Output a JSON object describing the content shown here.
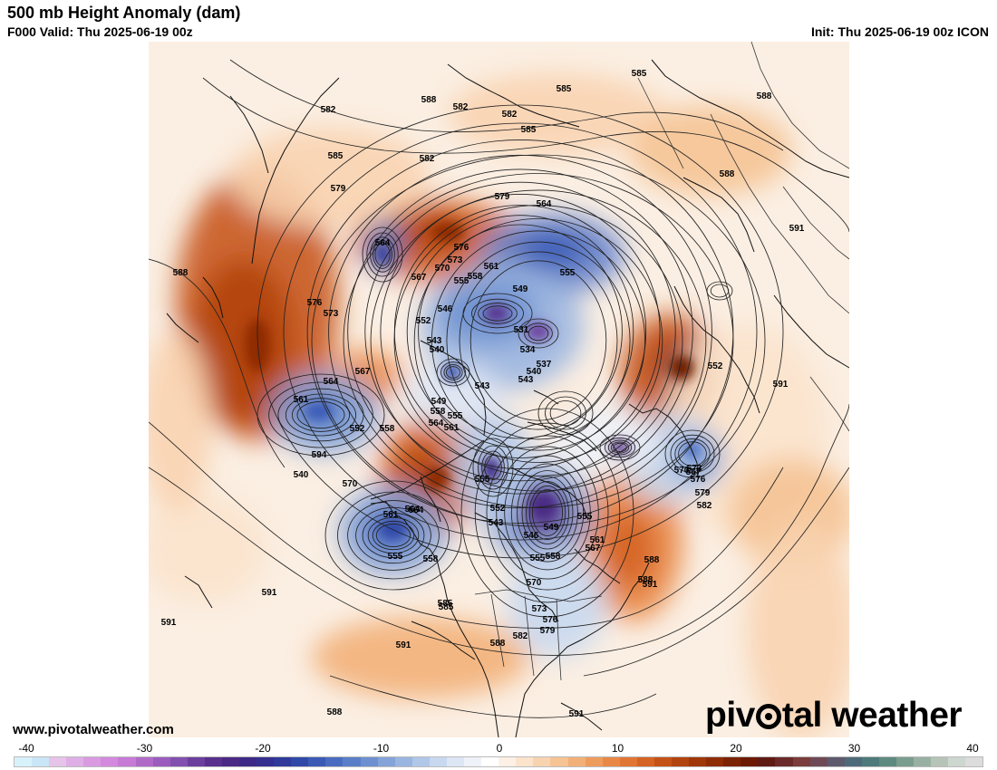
{
  "header": {
    "title": "500 mb Height Anomaly (dam)",
    "valid": "F000 Valid: Thu 2025-06-19 00z",
    "init": "Init: Thu 2025-06-19 00z ICON"
  },
  "footer": {
    "site_url": "www.pivotalweather.com",
    "brand_prefix": "piv",
    "brand_suffix": "tal weather"
  },
  "colorbar": {
    "ticks": [
      "-40",
      "-30",
      "-20",
      "-10",
      "0",
      "10",
      "20",
      "30",
      "40"
    ],
    "range": [
      -40,
      40
    ],
    "colors": [
      "#d8f2fb",
      "#c9e6f7",
      "#e6c4ea",
      "#dfaee6",
      "#d99ae2",
      "#d289de",
      "#c77ad6",
      "#b06bc9",
      "#9a5cbd",
      "#8250ae",
      "#6b3f9c",
      "#59308c",
      "#4a2a83",
      "#3d2a86",
      "#35308f",
      "#2f3a9b",
      "#3049a8",
      "#3a5ab6",
      "#4a6cc0",
      "#5a7ec8",
      "#6e90d0",
      "#84a3d8",
      "#9ab5e0",
      "#b1c7e8",
      "#c8d8ef",
      "#dde6f4",
      "#eef2f8",
      "#ffffff",
      "#fdf0e4",
      "#fbe3cc",
      "#f8d3b0",
      "#f5c394",
      "#f2b078",
      "#ee9c5e",
      "#e98846",
      "#e17533",
      "#d46324",
      "#c45218",
      "#b2440f",
      "#a03709",
      "#8e2c06",
      "#7c2205",
      "#6d1a05",
      "#5f1a14",
      "#6a2a2a",
      "#7a3c3c",
      "#6e4a56",
      "#5d5a6e",
      "#4e6a7a",
      "#4d7a7a",
      "#5e8a80",
      "#7a9d8f",
      "#98b0a2",
      "#b6c4b8",
      "#cdd6cf",
      "#dcdcdc"
    ]
  },
  "map": {
    "contour_labels": [
      "585",
      "588",
      "585",
      "582",
      "582",
      "582",
      "588",
      "585",
      "588",
      "585",
      "582",
      "579",
      "564",
      "579",
      "576",
      "573",
      "570",
      "567",
      "561",
      "555",
      "558",
      "549",
      "564",
      "555",
      "591",
      "588",
      "576",
      "573",
      "546",
      "552",
      "543",
      "540",
      "537",
      "534",
      "531",
      "540",
      "543",
      "543",
      "567",
      "564",
      "561",
      "552",
      "549",
      "558",
      "555",
      "564",
      "561",
      "558",
      "552",
      "591",
      "594",
      "555",
      "540",
      "570",
      "573",
      "576",
      "579",
      "582",
      "591",
      "570",
      "567",
      "564",
      "561",
      "558",
      "555",
      "546",
      "549",
      "543",
      "552",
      "567",
      "585",
      "588",
      "591",
      "591",
      "570",
      "573",
      "576",
      "579",
      "582",
      "585",
      "588",
      "591",
      "588",
      "591",
      "588",
      "564",
      "555",
      "558",
      "561",
      "555"
    ]
  }
}
